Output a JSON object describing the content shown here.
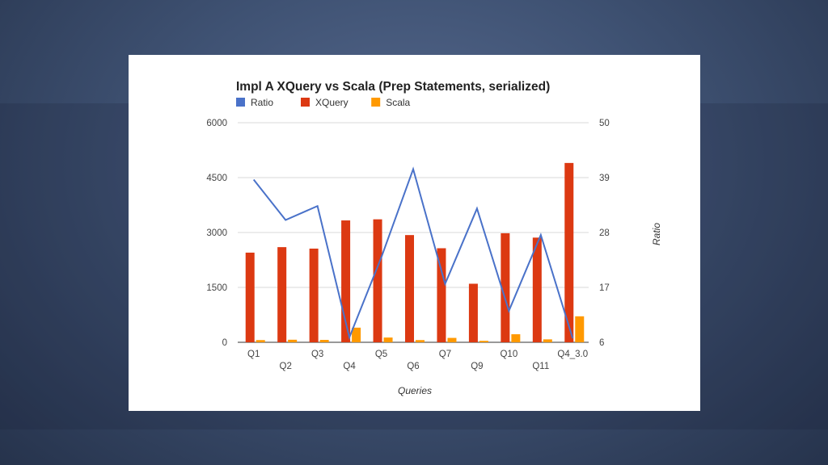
{
  "chart_data": {
    "type": "bar",
    "title": "Impl A XQuery vs Scala (Prep Statements, serialized)",
    "xlabel": "Queries",
    "ylabel": "",
    "y2label": "Ratio",
    "categories": [
      "Q1",
      "Q2",
      "Q3",
      "Q4",
      "Q5",
      "Q6",
      "Q7",
      "Q9",
      "Q10",
      "Q11",
      "Q4_3.0"
    ],
    "ylim": [
      0,
      6000
    ],
    "y2lim": [
      6,
      50
    ],
    "yticks": [
      "0",
      "1500",
      "3000",
      "4500",
      "6000"
    ],
    "y2ticks": [
      "6",
      "17",
      "28",
      "39",
      "50"
    ],
    "series": [
      {
        "name": "Ratio",
        "type": "line",
        "axis": "right",
        "color": "#4a72c9",
        "values": [
          38.6,
          30.5,
          33.3,
          7.0,
          23.0,
          40.7,
          17.7,
          32.8,
          12.3,
          27.5,
          6.8
        ]
      },
      {
        "name": "XQuery",
        "type": "bar",
        "axis": "left",
        "color": "#dc3912",
        "values": [
          2450,
          2600,
          2560,
          3330,
          3360,
          2930,
          2570,
          1600,
          2980,
          2860,
          4900
        ]
      },
      {
        "name": "Scala",
        "type": "bar",
        "axis": "left",
        "color": "#ff9900",
        "values": [
          60,
          70,
          65,
          400,
          130,
          60,
          120,
          40,
          220,
          80,
          710
        ]
      }
    ],
    "legend_position": "top-left",
    "grid": true
  }
}
